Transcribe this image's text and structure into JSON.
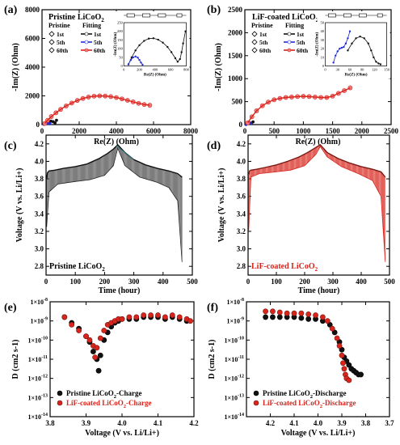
{
  "figure": {
    "panel_letters": [
      "(a)",
      "(b)",
      "(c)",
      "(d)",
      "(e)",
      "(f)"
    ]
  },
  "colors": {
    "black": "#111111",
    "blue": "#1f2bd6",
    "red": "#d8241c",
    "pink": "#f08080",
    "white": "#ffffff"
  },
  "chart_data": [
    {
      "id": "a",
      "type": "scatter",
      "title": "Pristine LiCoO2",
      "title_main": "Pristine LiCoO",
      "title_sub": "2",
      "xlabel": "Re(Z) (Ohm)",
      "ylabel": "-Im(Z) (Ohm)",
      "xlim": [
        0,
        8000
      ],
      "ylim": [
        0,
        8000
      ],
      "xticks": [
        0,
        2000,
        4000,
        6000,
        8000
      ],
      "yticks": [
        0,
        2000,
        4000,
        6000,
        8000
      ],
      "legend": {
        "header_left": "Pristine",
        "header_right": "Fitting",
        "entries": [
          "1st",
          "5th",
          "60th"
        ]
      },
      "series": [
        {
          "name": "1st",
          "x": [
            120,
            240,
            360,
            480,
            600,
            700,
            780
          ],
          "y": [
            20,
            140,
            220,
            240,
            200,
            120,
            300
          ]
        },
        {
          "name": "5th",
          "x": [
            100,
            180,
            260,
            340,
            420
          ],
          "y": [
            20,
            80,
            110,
            100,
            60
          ]
        },
        {
          "name": "60th",
          "x": [
            150,
            300,
            500,
            750,
            1000,
            1300,
            1600,
            1900,
            2200,
            2500,
            2800,
            3100,
            3400,
            3700,
            4000,
            4300,
            4600,
            4900,
            5200,
            5500,
            5800
          ],
          "y": [
            80,
            300,
            560,
            820,
            1060,
            1300,
            1500,
            1680,
            1820,
            1920,
            1980,
            2000,
            1990,
            1950,
            1880,
            1790,
            1690,
            1580,
            1480,
            1400,
            1350
          ]
        }
      ],
      "inset": {
        "xlabel": "Re(Z) (Ohm)",
        "ylabel": "-Im(Z) (Ohm)",
        "xlim": [
          0,
          800
        ],
        "ylim": [
          0,
          250
        ],
        "xticks": [
          0,
          200,
          400,
          600,
          800
        ],
        "yticks": [
          0,
          50,
          100,
          150,
          200,
          250
        ],
        "circuit_labels": [
          "Rs",
          "R1",
          "R2",
          "W",
          "CPE1",
          "CPE2"
        ],
        "series": [
          {
            "name": "1st",
            "x": [
              60,
              100,
              150,
              200,
              260,
              320,
              380,
              440,
              500,
              560,
              610,
              660,
              690,
              720,
              740,
              760,
              790
            ],
            "y": [
              10,
              50,
              90,
              120,
              145,
              158,
              160,
              152,
              135,
              110,
              80,
              45,
              25,
              40,
              80,
              130,
              200
            ]
          },
          {
            "name": "5th",
            "x": [
              60,
              90,
              120,
              150,
              180,
              200,
              220,
              240
            ],
            "y": [
              10,
              35,
              50,
              55,
              48,
              35,
              20,
              8
            ]
          }
        ]
      }
    },
    {
      "id": "b",
      "type": "scatter",
      "title": "LiF-coated LiCoO2",
      "title_main": "LiF-coated LiCoO",
      "title_sub": "2",
      "xlabel": "Re(Z) (Ohm)",
      "ylabel": "-Im(Z) (Ohm)",
      "xlim": [
        0,
        2500
      ],
      "ylim": [
        0,
        2500
      ],
      "xticks": [
        0,
        500,
        1000,
        1500,
        2000,
        2500
      ],
      "yticks": [
        0,
        500,
        1000,
        1500,
        2000,
        2500
      ],
      "legend": {
        "header_left": "Pristine",
        "header_right": "Fitting",
        "entries": [
          "1st",
          "5th",
          "60th"
        ]
      },
      "series": [
        {
          "name": "1st",
          "x": [
            20,
            50,
            80,
            110,
            140
          ],
          "y": [
            5,
            25,
            40,
            30,
            60
          ]
        },
        {
          "name": "5th",
          "x": [
            20,
            40,
            60,
            80,
            100
          ],
          "y": [
            5,
            30,
            45,
            35,
            20
          ]
        },
        {
          "name": "60th",
          "x": [
            50,
            120,
            200,
            300,
            400,
            500,
            600,
            700,
            800,
            900,
            1000,
            1100,
            1200,
            1300,
            1400,
            1500,
            1600,
            1700,
            1800
          ],
          "y": [
            40,
            170,
            300,
            410,
            490,
            540,
            570,
            590,
            600,
            610,
            615,
            610,
            600,
            590,
            590,
            620,
            680,
            740,
            800
          ]
        }
      ],
      "inset": {
        "xlabel": "Re(Z) (Ohm)",
        "ylabel": "-Im(Z) (Ohm)",
        "xlim": [
          0,
          150
        ],
        "ylim": [
          0,
          50
        ],
        "xticks": [
          0,
          30,
          60,
          90,
          120,
          150
        ],
        "yticks": [
          0,
          10,
          20,
          30,
          40,
          50
        ],
        "circuit_labels": [
          "Rs",
          "R1",
          "R2",
          "W",
          "CPE1",
          "CPE2"
        ],
        "series": [
          {
            "name": "1st",
            "x": [
              55,
              65,
              75,
              85,
              95,
              105,
              112,
              118,
              124,
              130,
              135
            ],
            "y": [
              18,
              26,
              32,
              34,
              32,
              26,
              18,
              10,
              5,
              3,
              2
            ]
          },
          {
            "name": "5th",
            "x": [
              20,
              25,
              30,
              35,
              40,
              45,
              50,
              55,
              60
            ],
            "y": [
              4,
              12,
              17,
              20,
              21,
              22,
              26,
              32,
              40
            ]
          }
        ]
      }
    },
    {
      "id": "c",
      "type": "line",
      "label": "Pristine LiCoO2",
      "label_main": "Pristine LiCoO",
      "label_sub": "2",
      "xlabel": "Time (hour)",
      "ylabel": "Voltage (V vs. Li/Li+)",
      "xlim": [
        0,
        500
      ],
      "ylim": [
        2.7,
        4.3
      ],
      "xticks": [
        0,
        100,
        200,
        300,
        400,
        500
      ],
      "yticks": [
        2.8,
        3.0,
        3.2,
        3.4,
        3.6,
        3.8,
        4.0,
        4.2
      ],
      "charge": {
        "x": [
          2,
          5,
          10,
          30,
          60,
          100,
          140,
          180,
          210,
          230,
          245
        ],
        "y": [
          3.8,
          3.87,
          3.89,
          3.9,
          3.92,
          3.94,
          3.97,
          4.03,
          4.09,
          4.14,
          4.19
        ]
      },
      "discharge": {
        "x": [
          245,
          270,
          300,
          340,
          380,
          420,
          450,
          465
        ],
        "y": [
          4.19,
          4.1,
          4.02,
          3.96,
          3.92,
          3.89,
          3.86,
          3.82
        ]
      },
      "relax_low": {
        "x": [
          2,
          10,
          40,
          100,
          150,
          200,
          230,
          245,
          270,
          320,
          380,
          420,
          450,
          465
        ],
        "y": [
          3.25,
          3.65,
          3.74,
          3.77,
          3.79,
          3.84,
          3.95,
          4.15,
          3.95,
          3.82,
          3.76,
          3.7,
          3.55,
          2.85
        ]
      }
    },
    {
      "id": "d",
      "type": "line",
      "label": "LiF-coated LiCoO2",
      "label_main": "LiF-coated LiCoO",
      "label_sub": "2",
      "xlabel": "Time (hour)",
      "ylabel": "Voltage (V vs. Li/Li+)",
      "xlim": [
        0,
        500
      ],
      "ylim": [
        2.7,
        4.3
      ],
      "xticks": [
        0,
        100,
        200,
        300,
        400,
        500
      ],
      "yticks": [
        2.8,
        3.0,
        3.2,
        3.4,
        3.6,
        3.8,
        4.0,
        4.2
      ],
      "charge": {
        "x": [
          2,
          5,
          10,
          30,
          60,
          100,
          140,
          180,
          210,
          235,
          255
        ],
        "y": [
          3.85,
          3.89,
          3.9,
          3.91,
          3.93,
          3.96,
          4.0,
          4.05,
          4.1,
          4.15,
          4.19
        ]
      },
      "discharge": {
        "x": [
          255,
          280,
          320,
          360,
          400,
          440,
          470,
          485
        ],
        "y": [
          4.19,
          4.1,
          4.03,
          3.98,
          3.94,
          3.91,
          3.88,
          3.82
        ]
      },
      "relax_low": {
        "x": [
          2,
          10,
          40,
          100,
          150,
          200,
          240,
          255,
          280,
          330,
          390,
          440,
          470,
          485
        ],
        "y": [
          3.2,
          3.82,
          3.86,
          3.88,
          3.9,
          3.95,
          4.08,
          4.17,
          4.05,
          3.94,
          3.86,
          3.78,
          3.6,
          2.85
        ]
      }
    },
    {
      "id": "e",
      "type": "scatter",
      "log_y": true,
      "xlabel": "Voltage (V vs. Li/Li+)",
      "ylabel": "D (cm2 s-1)",
      "xlim": [
        3.8,
        4.2
      ],
      "ylim_exp": [
        -14,
        -8
      ],
      "xticks": [
        3.8,
        3.9,
        4.0,
        4.1,
        4.2
      ],
      "ytick_exps": [
        -14,
        -13,
        -12,
        -11,
        -10,
        -9,
        -8
      ],
      "series": [
        {
          "name": "Pristine LiCoO2-Charge",
          "name_main": "Pristine LiCoO",
          "name_sub": "2",
          "name_tail": "-Charge",
          "x": [
            3.84,
            3.86,
            3.88,
            3.9,
            3.91,
            3.92,
            3.93,
            3.935,
            3.94,
            3.95,
            3.96,
            3.97,
            3.98,
            3.99,
            4.0,
            4.02,
            4.04,
            4.06,
            4.08,
            4.1,
            4.12,
            4.14,
            4.16,
            4.18
          ],
          "y": [
            -8.8,
            -9.1,
            -9.4,
            -9.8,
            -10.1,
            -10.6,
            -11.0,
            -11.6,
            -10.8,
            -10.0,
            -9.6,
            -9.3,
            -9.1,
            -9.0,
            -8.9,
            -8.9,
            -8.9,
            -8.8,
            -8.8,
            -8.8,
            -8.9,
            -8.8,
            -8.9,
            -9.0
          ]
        },
        {
          "name": "LiF-coated LiCoO2-Charge",
          "name_main": "LiF-coated LiCoO",
          "name_sub": "2",
          "name_tail": "-Charge",
          "x": [
            3.84,
            3.86,
            3.88,
            3.9,
            3.91,
            3.92,
            3.925,
            3.93,
            3.94,
            3.95,
            3.96,
            3.97,
            3.98,
            3.99,
            4.0,
            4.02,
            4.04,
            4.06,
            4.08,
            4.1,
            4.12,
            4.14,
            4.16,
            4.18,
            4.19
          ],
          "y": [
            -8.8,
            -9.2,
            -9.5,
            -9.8,
            -10.0,
            -10.3,
            -10.9,
            -10.4,
            -9.9,
            -9.5,
            -9.2,
            -9.1,
            -9.0,
            -8.9,
            -8.9,
            -8.8,
            -8.8,
            -8.7,
            -8.7,
            -8.7,
            -8.8,
            -8.7,
            -8.8,
            -8.9,
            -9.0
          ]
        }
      ],
      "legend": {
        "placement": "bottom-left"
      }
    },
    {
      "id": "f",
      "type": "scatter",
      "log_y": true,
      "x_reversed": true,
      "xlabel": "Voltage (V vs. Li/Li+)",
      "ylabel": "D (cm2 s-1)",
      "xlim": [
        4.3,
        3.7
      ],
      "ylim_exp": [
        -14,
        -8
      ],
      "xticks": [
        4.2,
        4.1,
        4.0,
        3.9,
        3.8,
        3.7
      ],
      "ytick_exps": [
        -14,
        -13,
        -12,
        -11,
        -10,
        -9,
        -8
      ],
      "series": [
        {
          "name": "Pristine LiCoO2-Discharge",
          "name_main": "Pristine LiCoO",
          "name_sub": "2",
          "name_tail": "-Discharge",
          "x": [
            4.22,
            4.19,
            4.16,
            4.13,
            4.1,
            4.07,
            4.04,
            4.01,
            3.98,
            3.95,
            3.93,
            3.91,
            3.9,
            3.89,
            3.88,
            3.87,
            3.86,
            3.85,
            3.84,
            3.83,
            3.82
          ],
          "y": [
            -8.8,
            -8.8,
            -8.8,
            -8.8,
            -8.8,
            -8.85,
            -8.9,
            -8.9,
            -9.0,
            -9.2,
            -9.6,
            -10.1,
            -10.5,
            -10.9,
            -11.1,
            -11.3,
            -11.5,
            -11.6,
            -11.7,
            -11.8,
            -11.8
          ]
        },
        {
          "name": "LiF-coated LiCoO2-Discharge",
          "name_main": "LiF-coated LiCoO",
          "name_sub": "2",
          "name_tail": "-Discharge",
          "x": [
            4.22,
            4.19,
            4.16,
            4.13,
            4.1,
            4.07,
            4.04,
            4.01,
            3.98,
            3.96,
            3.94,
            3.92,
            3.91,
            3.9,
            3.895,
            3.89,
            3.885,
            3.88,
            3.87
          ],
          "y": [
            -8.5,
            -8.5,
            -8.55,
            -8.6,
            -8.6,
            -8.6,
            -8.65,
            -8.7,
            -8.8,
            -9.0,
            -9.4,
            -9.9,
            -10.3,
            -10.8,
            -11.2,
            -11.5,
            -11.8,
            -12.0,
            -12.1
          ]
        }
      ],
      "legend": {
        "placement": "bottom-left"
      }
    }
  ]
}
